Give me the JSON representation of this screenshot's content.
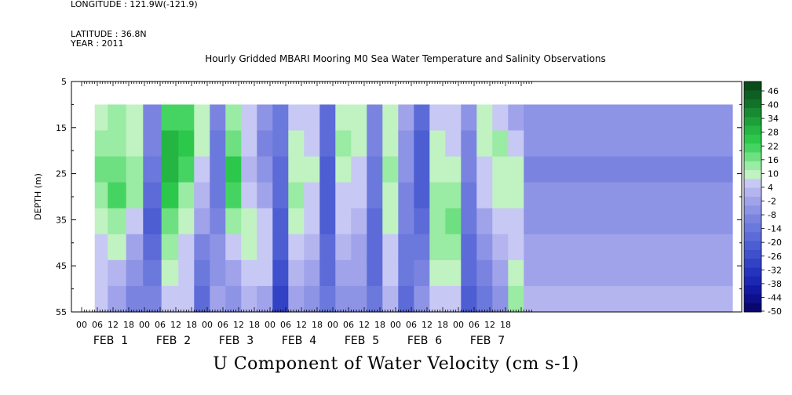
{
  "header": {
    "longitude": "LONGITUDE : 121.9W(-121.9)",
    "latitude": "LATITUDE : 36.8N",
    "year": "YEAR : 2011"
  },
  "chart_data": {
    "type": "heatmap",
    "title": "Hourly Gridded MBARI Mooring M0 Sea Water Temperature and Salinity Observations",
    "xlabel": "U Component of Water Velocity (cm s-1)",
    "ylabel": "DEPTH (m)",
    "ylim": [
      5,
      55
    ],
    "y_ticks": [
      5,
      15,
      25,
      35,
      45,
      55
    ],
    "data_depth_range": [
      10,
      55
    ],
    "x_hour_labels": [
      "00",
      "06",
      "12",
      "18",
      "00",
      "06",
      "12",
      "18",
      "00",
      "06",
      "12",
      "18",
      "00",
      "06",
      "12",
      "18",
      "00",
      "06",
      "12",
      "18",
      "00",
      "06",
      "12",
      "18",
      "00",
      "06",
      "12",
      "18"
    ],
    "x_day_labels": [
      "FEB  1",
      "FEB  2",
      "FEB  3",
      "FEB  4",
      "FEB  5",
      "FEB  6",
      "FEB  7"
    ],
    "data_start_hour": 5,
    "colorbar": {
      "labels": [
        "46",
        "40",
        "34",
        "28",
        "22",
        "16",
        "10",
        "4",
        "-2",
        "-8",
        "-14",
        "-20",
        "-26",
        "-32",
        "-38",
        "-44",
        "-50"
      ],
      "colors": [
        "#0b4a1b",
        "#0f5e22",
        "#137229",
        "#188a32",
        "#1e9f3a",
        "#24b543",
        "#2cc84b",
        "#45d462",
        "#6ee082",
        "#9aeba4",
        "#c0f2c2",
        "#c8c8f4",
        "#b4b4ef",
        "#a0a3ea",
        "#8d93e5",
        "#7a84e0",
        "#6b78dc",
        "#5c6bd8",
        "#4d5ed2",
        "#3f50cc",
        "#3242c5",
        "#2634bd",
        "#1c27b2",
        "#1419a3",
        "#0d0f8c",
        "#080770"
      ]
    },
    "series": [
      {
        "hour": 6,
        "values": [
          8,
          10,
          14,
          12,
          8,
          4,
          2,
          4
        ]
      },
      {
        "hour": 14,
        "values": [
          10,
          12,
          16,
          18,
          12,
          6,
          0,
          -4
        ]
      },
      {
        "hour": 20,
        "values": [
          6,
          8,
          12,
          10,
          4,
          -2,
          -8,
          -12
        ]
      },
      {
        "hour": 27,
        "values": [
          -10,
          -12,
          -16,
          -20,
          -22,
          -18,
          -14,
          -10
        ]
      },
      {
        "hour": 34,
        "values": [
          20,
          24,
          26,
          22,
          16,
          10,
          6,
          4
        ]
      },
      {
        "hour": 40,
        "values": [
          18,
          22,
          18,
          12,
          8,
          4,
          2,
          2
        ]
      },
      {
        "hour": 46,
        "values": [
          8,
          6,
          4,
          0,
          -4,
          -10,
          -14,
          -18
        ]
      },
      {
        "hour": 52,
        "values": [
          -12,
          -14,
          -16,
          -14,
          -10,
          -8,
          -6,
          -4
        ]
      },
      {
        "hour": 58,
        "values": [
          10,
          16,
          22,
          18,
          10,
          2,
          -4,
          -8
        ]
      },
      {
        "hour": 64,
        "values": [
          4,
          2,
          0,
          4,
          8,
          6,
          2,
          0
        ]
      },
      {
        "hour": 70,
        "values": [
          -8,
          -10,
          -6,
          -2,
          2,
          4,
          2,
          -2
        ]
      },
      {
        "hour": 76,
        "values": [
          -14,
          -16,
          -18,
          -20,
          -22,
          -24,
          -26,
          -28
        ]
      },
      {
        "hour": 82,
        "values": [
          4,
          6,
          8,
          10,
          8,
          4,
          0,
          -4
        ]
      },
      {
        "hour": 88,
        "values": [
          2,
          4,
          6,
          4,
          2,
          0,
          -4,
          -8
        ]
      },
      {
        "hour": 94,
        "values": [
          -18,
          -20,
          -22,
          -24,
          -22,
          -20,
          -18,
          -16
        ]
      },
      {
        "hour": 100,
        "values": [
          6,
          10,
          8,
          4,
          2,
          0,
          -2,
          -6
        ]
      },
      {
        "hour": 106,
        "values": [
          8,
          6,
          4,
          2,
          0,
          -2,
          -4,
          -6
        ]
      },
      {
        "hour": 112,
        "values": [
          -10,
          -12,
          -14,
          -16,
          -18,
          -20,
          -18,
          -16
        ]
      },
      {
        "hour": 118,
        "values": [
          6,
          8,
          10,
          8,
          6,
          4,
          2,
          0
        ]
      },
      {
        "hour": 124,
        "values": [
          -4,
          -6,
          -8,
          -10,
          -12,
          -14,
          -16,
          -18
        ]
      },
      {
        "hour": 130,
        "values": [
          -20,
          -22,
          -24,
          -22,
          -18,
          -14,
          -10,
          -6
        ]
      },
      {
        "hour": 136,
        "values": [
          4,
          6,
          8,
          10,
          12,
          10,
          6,
          2
        ]
      },
      {
        "hour": 142,
        "values": [
          2,
          4,
          6,
          12,
          16,
          12,
          6,
          2
        ]
      },
      {
        "hour": 148,
        "values": [
          -8,
          -10,
          -12,
          -14,
          -16,
          -18,
          -20,
          -22
        ]
      },
      {
        "hour": 154,
        "values": [
          6,
          8,
          4,
          2,
          -2,
          -6,
          -10,
          -14
        ]
      },
      {
        "hour": 160,
        "values": [
          4,
          12,
          8,
          6,
          2,
          0,
          -4,
          -6
        ]
      },
      {
        "hour": 166,
        "values": [
          -2,
          4,
          8,
          6,
          4,
          2,
          6,
          10
        ]
      },
      {
        "hour": 172,
        "values": [
          -6,
          -8,
          -10,
          -8,
          -6,
          -4,
          -2,
          0
        ]
      }
    ]
  }
}
